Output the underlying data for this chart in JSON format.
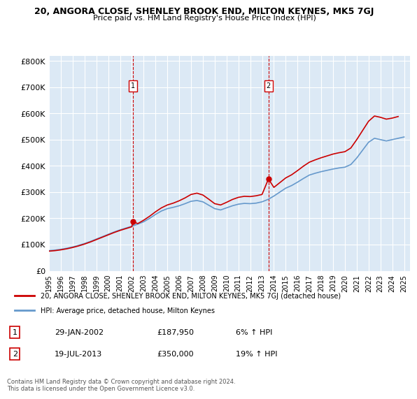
{
  "title": "20, ANGORA CLOSE, SHENLEY BROOK END, MILTON KEYNES, MK5 7GJ",
  "subtitle": "Price paid vs. HM Land Registry's House Price Index (HPI)",
  "background_color": "#dce9f5",
  "plot_bg_color": "#dce9f5",
  "ylim": [
    0,
    820000
  ],
  "yticks": [
    0,
    100000,
    200000,
    300000,
    400000,
    500000,
    600000,
    700000,
    800000
  ],
  "ytick_labels": [
    "£0",
    "£100K",
    "£200K",
    "£300K",
    "£400K",
    "£500K",
    "£600K",
    "£700K",
    "£800K"
  ],
  "xlim_start": 1995.0,
  "xlim_end": 2025.5,
  "xticks": [
    1995,
    1996,
    1997,
    1998,
    1999,
    2000,
    2001,
    2002,
    2003,
    2004,
    2005,
    2006,
    2007,
    2008,
    2009,
    2010,
    2011,
    2012,
    2013,
    2014,
    2015,
    2016,
    2017,
    2018,
    2019,
    2020,
    2021,
    2022,
    2023,
    2024,
    2025
  ],
  "sale1_x": 2002.08,
  "sale1_y": 187950,
  "sale1_label": "1",
  "sale1_date": "29-JAN-2002",
  "sale1_price": "£187,950",
  "sale1_hpi": "6% ↑ HPI",
  "sale2_x": 2013.54,
  "sale2_y": 350000,
  "sale2_label": "2",
  "sale2_date": "19-JUL-2013",
  "sale2_price": "£350,000",
  "sale2_hpi": "19% ↑ HPI",
  "red_color": "#cc0000",
  "blue_color": "#6699cc",
  "legend_line1": "20, ANGORA CLOSE, SHENLEY BROOK END, MILTON KEYNES, MK5 7GJ (detached house)",
  "legend_line2": "HPI: Average price, detached house, Milton Keynes",
  "footer": "Contains HM Land Registry data © Crown copyright and database right 2024.\nThis data is licensed under the Open Government Licence v3.0.",
  "hpi_x": [
    1995.0,
    1995.5,
    1996.0,
    1996.5,
    1997.0,
    1997.5,
    1998.0,
    1998.5,
    1999.0,
    1999.5,
    2000.0,
    2000.5,
    2001.0,
    2001.5,
    2002.0,
    2002.5,
    2003.0,
    2003.5,
    2004.0,
    2004.5,
    2005.0,
    2005.5,
    2006.0,
    2006.5,
    2007.0,
    2007.5,
    2008.0,
    2008.5,
    2009.0,
    2009.5,
    2010.0,
    2010.5,
    2011.0,
    2011.5,
    2012.0,
    2012.5,
    2013.0,
    2013.5,
    2014.0,
    2014.5,
    2015.0,
    2015.5,
    2016.0,
    2016.5,
    2017.0,
    2017.5,
    2018.0,
    2018.5,
    2019.0,
    2019.5,
    2020.0,
    2020.5,
    2021.0,
    2021.5,
    2022.0,
    2022.5,
    2023.0,
    2023.5,
    2024.0,
    2024.5,
    2025.0
  ],
  "hpi_y": [
    77000,
    79000,
    82000,
    86000,
    91000,
    97000,
    104000,
    112000,
    121000,
    130000,
    139000,
    148000,
    156000,
    163000,
    170000,
    178000,
    187000,
    200000,
    215000,
    228000,
    237000,
    242000,
    248000,
    256000,
    265000,
    268000,
    263000,
    250000,
    237000,
    232000,
    240000,
    248000,
    254000,
    257000,
    256000,
    258000,
    263000,
    272000,
    285000,
    300000,
    315000,
    325000,
    338000,
    352000,
    365000,
    372000,
    378000,
    383000,
    388000,
    392000,
    395000,
    405000,
    430000,
    460000,
    490000,
    505000,
    500000,
    495000,
    500000,
    505000,
    510000
  ],
  "price_x": [
    1995.0,
    1995.5,
    1996.0,
    1996.5,
    1997.0,
    1997.5,
    1998.0,
    1998.5,
    1999.0,
    1999.5,
    2000.0,
    2000.5,
    2001.0,
    2001.5,
    2002.0,
    2002.08,
    2002.5,
    2003.0,
    2003.5,
    2004.0,
    2004.5,
    2005.0,
    2005.5,
    2006.0,
    2006.5,
    2007.0,
    2007.5,
    2008.0,
    2008.5,
    2009.0,
    2009.5,
    2010.0,
    2010.5,
    2011.0,
    2011.5,
    2012.0,
    2012.5,
    2013.0,
    2013.54,
    2014.0,
    2014.5,
    2015.0,
    2015.5,
    2016.0,
    2016.5,
    2017.0,
    2017.5,
    2018.0,
    2018.5,
    2019.0,
    2019.5,
    2020.0,
    2020.5,
    2021.0,
    2021.5,
    2022.0,
    2022.5,
    2023.0,
    2023.5,
    2024.0,
    2024.5
  ],
  "price_y": [
    75000,
    77000,
    80000,
    84000,
    89000,
    95000,
    102000,
    110000,
    119000,
    128000,
    137000,
    146000,
    154000,
    161000,
    168000,
    187950,
    180000,
    193000,
    208000,
    225000,
    240000,
    251000,
    258000,
    267000,
    278000,
    291000,
    296000,
    289000,
    273000,
    256000,
    251000,
    261000,
    272000,
    280000,
    284000,
    283000,
    286000,
    291000,
    350000,
    318000,
    336000,
    354000,
    366000,
    382000,
    399000,
    414000,
    423000,
    431000,
    438000,
    445000,
    450000,
    454000,
    468000,
    500000,
    535000,
    570000,
    590000,
    585000,
    578000,
    582000,
    588000
  ]
}
